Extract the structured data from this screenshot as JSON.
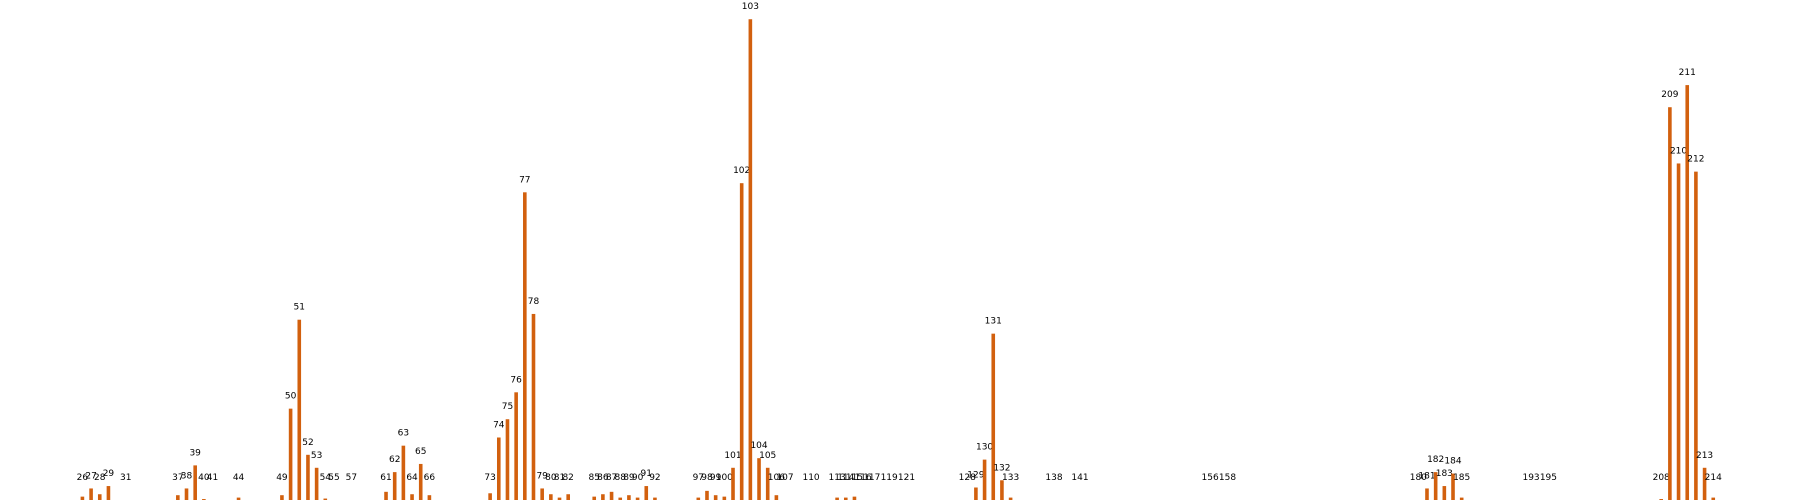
{
  "chart_data": {
    "type": "bar",
    "color": "#d2600e",
    "x": [
      26,
      27,
      28,
      29,
      31,
      37,
      38,
      39,
      40,
      41,
      44,
      49,
      50,
      51,
      52,
      53,
      54,
      55,
      57,
      61,
      62,
      63,
      64,
      65,
      66,
      73,
      74,
      75,
      76,
      77,
      78,
      79,
      80,
      81,
      82,
      85,
      86,
      87,
      88,
      89,
      90,
      91,
      92,
      97,
      98,
      99,
      100,
      101,
      102,
      103,
      104,
      105,
      106,
      107,
      110,
      113,
      114,
      115,
      116,
      117,
      119,
      121,
      128,
      129,
      130,
      131,
      132,
      133,
      138,
      141,
      156,
      158,
      180,
      181,
      182,
      183,
      184,
      185,
      193,
      195,
      208,
      209,
      210,
      211,
      212,
      213,
      214
    ],
    "values": [
      0.7,
      2.4,
      1.2,
      2.9,
      0,
      1,
      2.4,
      7.2,
      0.2,
      0,
      0.5,
      1,
      19,
      37.5,
      9.4,
      6.7,
      0.3,
      0,
      0,
      1.7,
      5.8,
      11.3,
      1.2,
      7.5,
      1,
      1.4,
      13,
      16.8,
      22.4,
      64,
      38.7,
      2.4,
      1.2,
      0.5,
      1.2,
      0.7,
      1.2,
      1.7,
      0.5,
      1,
      0.5,
      2.9,
      0.5,
      0.5,
      1.9,
      1,
      0.7,
      6.7,
      65.9,
      100,
      8.7,
      6.7,
      1,
      0,
      0,
      0.5,
      0.5,
      0.7,
      0,
      0,
      0,
      0,
      0,
      2.6,
      8.4,
      34.6,
      4.1,
      0.5,
      0,
      0,
      0,
      0,
      0,
      2.4,
      5.8,
      2.9,
      5.5,
      0.5,
      0,
      0,
      0.2,
      81.7,
      70,
      86.3,
      68.3,
      6.7,
      0.5
    ],
    "xlim": [
      16.5,
      224
    ],
    "ylim": [
      0,
      104
    ]
  }
}
